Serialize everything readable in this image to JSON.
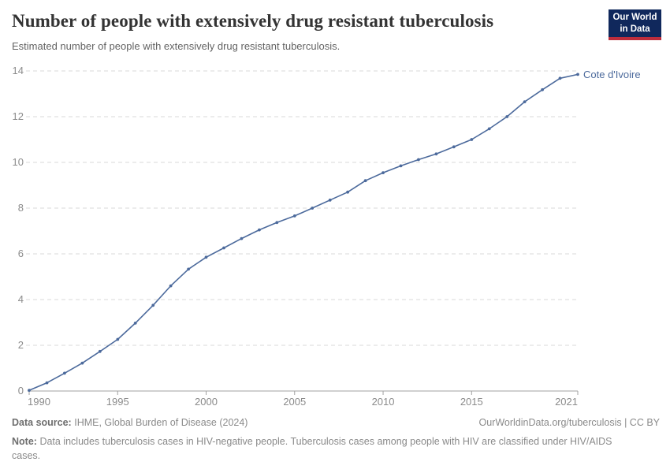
{
  "header": {
    "title": "Number of people with extensively drug resistant tuberculosis",
    "subtitle": "Estimated number of people with extensively drug resistant tuberculosis.",
    "logo": {
      "line1": "Our World",
      "line2": "in Data"
    }
  },
  "chart_data": {
    "type": "line",
    "title": "Number of people with extensively drug resistant tuberculosis",
    "xlabel": "",
    "ylabel": "",
    "xlim": [
      1990,
      2021
    ],
    "ylim": [
      0,
      14
    ],
    "xticks": [
      1990,
      1995,
      2000,
      2005,
      2010,
      2015,
      2021
    ],
    "yticks": [
      0,
      2,
      4,
      6,
      8,
      10,
      12,
      14
    ],
    "grid": "horizontal-dashed",
    "legend_position": "end-of-line-label",
    "x": [
      1990,
      1991,
      1992,
      1993,
      1994,
      1995,
      1996,
      1997,
      1998,
      1999,
      2000,
      2001,
      2002,
      2003,
      2004,
      2005,
      2006,
      2007,
      2008,
      2009,
      2010,
      2011,
      2012,
      2013,
      2014,
      2015,
      2016,
      2017,
      2018,
      2019,
      2020,
      2021
    ],
    "series": [
      {
        "name": "Cote d'Ivoire",
        "values": [
          0.03,
          0.36,
          0.78,
          1.22,
          1.73,
          2.26,
          2.97,
          3.75,
          4.6,
          5.33,
          5.85,
          6.26,
          6.67,
          7.05,
          7.37,
          7.66,
          8.0,
          8.35,
          8.7,
          9.2,
          9.55,
          9.85,
          10.12,
          10.37,
          10.68,
          11.0,
          11.47,
          12.0,
          12.65,
          13.18,
          13.68,
          13.85
        ]
      }
    ]
  },
  "footer": {
    "source_label": "Data source:",
    "source_text": "IHME, Global Burden of Disease (2024)",
    "license_text": "OurWorldinData.org/tuberculosis | CC BY",
    "note_label": "Note:",
    "note_text": "Data includes tuberculosis cases in HIV-negative people. Tuberculosis cases among people with HIV are classified under HIV/AIDS cases."
  },
  "colors": {
    "line": "#4c6a9c",
    "entity_label": "#4c6a9c",
    "grid": "#dadada",
    "axis": "#a1a1a1",
    "tick_label": "#8b8b8b",
    "title": "#333333",
    "subtitle": "#636363",
    "footer": "#8a8a8a",
    "logo_bg": "#10285c",
    "logo_accent": "#be2d3c"
  }
}
